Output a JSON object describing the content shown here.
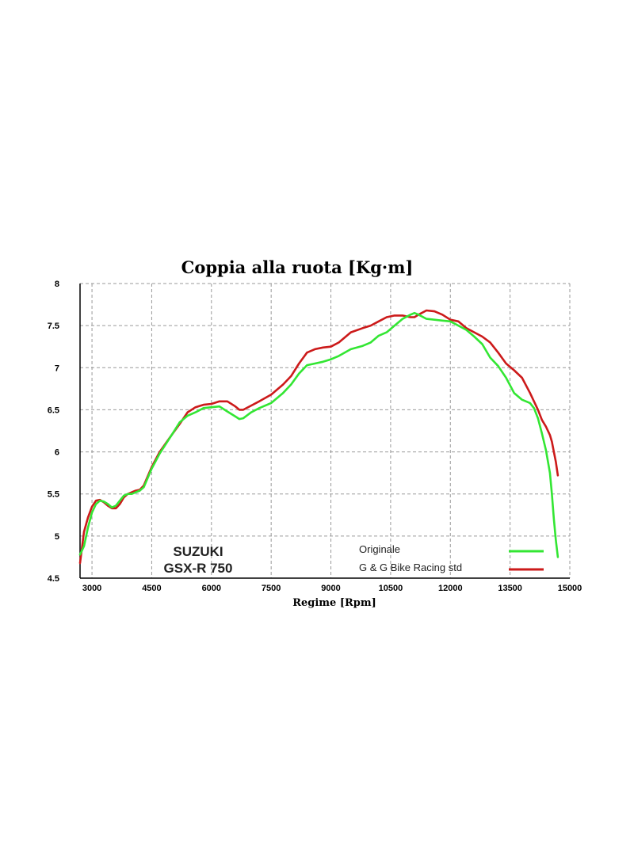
{
  "chart_data": {
    "type": "line",
    "title": "Coppia alla ruota [Kg·m]",
    "xlabel": "Regime [Rpm]",
    "ylabel": "",
    "xlim": [
      2700,
      15000
    ],
    "ylim": [
      4.5,
      8
    ],
    "x_ticks": [
      "3000",
      "4500",
      "6000",
      "7500",
      "9000",
      "10500",
      "12000",
      "13500",
      "15000"
    ],
    "y_ticks": [
      "4.5",
      "5",
      "5.5",
      "6",
      "6.5",
      "7",
      "7.5",
      "8"
    ],
    "grid": true,
    "legend_position": "bottom-right",
    "brand": [
      "SUZUKI",
      "GSX-R 750"
    ],
    "series": [
      {
        "name": "Originale",
        "color": "#33e633",
        "x": [
          2700,
          2800,
          2900,
          3000,
          3100,
          3200,
          3300,
          3400,
          3500,
          3600,
          3700,
          3800,
          3900,
          4000,
          4100,
          4200,
          4300,
          4500,
          4700,
          5000,
          5200,
          5400,
          5600,
          5800,
          6000,
          6200,
          6400,
          6600,
          6700,
          6800,
          7000,
          7200,
          7500,
          7800,
          8000,
          8200,
          8400,
          8600,
          8800,
          9000,
          9200,
          9500,
          9800,
          10000,
          10200,
          10400,
          10600,
          10800,
          11000,
          11100,
          11200,
          11400,
          11600,
          11800,
          12000,
          12200,
          12400,
          12600,
          12800,
          13000,
          13200,
          13400,
          13600,
          13800,
          14000,
          14100,
          14200,
          14300,
          14400,
          14500,
          14550,
          14600,
          14650,
          14700
        ],
        "values": [
          4.78,
          4.88,
          5.1,
          5.28,
          5.38,
          5.42,
          5.41,
          5.38,
          5.34,
          5.36,
          5.42,
          5.48,
          5.5,
          5.5,
          5.52,
          5.54,
          5.58,
          5.8,
          5.98,
          6.2,
          6.35,
          6.43,
          6.47,
          6.52,
          6.53,
          6.54,
          6.48,
          6.42,
          6.39,
          6.4,
          6.47,
          6.52,
          6.58,
          6.7,
          6.8,
          6.93,
          7.03,
          7.05,
          7.07,
          7.1,
          7.14,
          7.22,
          7.26,
          7.3,
          7.38,
          7.42,
          7.5,
          7.58,
          7.63,
          7.65,
          7.63,
          7.58,
          7.57,
          7.56,
          7.55,
          7.5,
          7.45,
          7.37,
          7.28,
          7.12,
          7.02,
          6.88,
          6.7,
          6.62,
          6.58,
          6.52,
          6.4,
          6.22,
          6.02,
          5.75,
          5.5,
          5.2,
          4.95,
          4.75
        ]
      },
      {
        "name": "G & G Bike Racing std",
        "color": "#cc1a1a",
        "x": [
          2700,
          2800,
          2900,
          3000,
          3100,
          3200,
          3300,
          3400,
          3500,
          3600,
          3700,
          3800,
          3900,
          4000,
          4100,
          4200,
          4300,
          4500,
          4700,
          5000,
          5200,
          5400,
          5600,
          5800,
          6000,
          6200,
          6400,
          6600,
          6700,
          6800,
          7000,
          7200,
          7500,
          7800,
          8000,
          8200,
          8400,
          8600,
          8800,
          9000,
          9200,
          9500,
          9800,
          10000,
          10200,
          10400,
          10600,
          10800,
          11000,
          11100,
          11200,
          11400,
          11600,
          11800,
          12000,
          12200,
          12400,
          12600,
          12800,
          13000,
          13200,
          13400,
          13600,
          13800,
          14000,
          14100,
          14200,
          14300,
          14400,
          14500,
          14550,
          14600,
          14650,
          14700
        ],
        "values": [
          4.68,
          5.05,
          5.22,
          5.35,
          5.42,
          5.43,
          5.4,
          5.36,
          5.33,
          5.33,
          5.38,
          5.46,
          5.5,
          5.52,
          5.54,
          5.55,
          5.6,
          5.82,
          6.0,
          6.2,
          6.33,
          6.47,
          6.53,
          6.56,
          6.57,
          6.6,
          6.6,
          6.54,
          6.5,
          6.5,
          6.55,
          6.6,
          6.68,
          6.8,
          6.9,
          7.05,
          7.18,
          7.22,
          7.24,
          7.25,
          7.3,
          7.42,
          7.47,
          7.5,
          7.55,
          7.6,
          7.62,
          7.62,
          7.6,
          7.6,
          7.63,
          7.68,
          7.67,
          7.63,
          7.57,
          7.55,
          7.47,
          7.42,
          7.37,
          7.3,
          7.18,
          7.05,
          6.97,
          6.88,
          6.7,
          6.6,
          6.5,
          6.38,
          6.3,
          6.2,
          6.12,
          6.0,
          5.88,
          5.72
        ]
      }
    ]
  }
}
